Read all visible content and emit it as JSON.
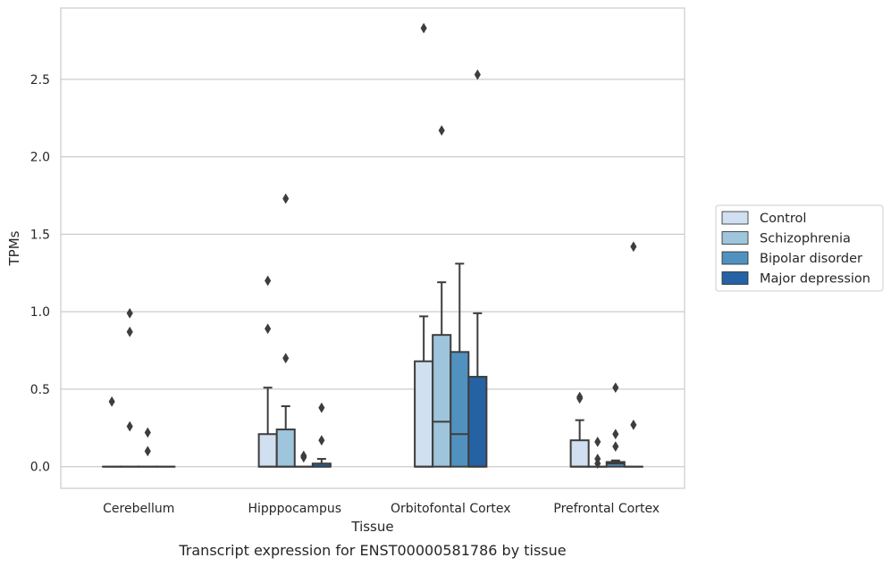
{
  "caption": "Transcript expression for ENST00000581786 by tissue",
  "chart_data": {
    "type": "box",
    "title": "",
    "xlabel": "Tissue",
    "ylabel": "TPMs",
    "categories": [
      "Cerebellum",
      "Hipppocampus",
      "Orbitofontal Cortex",
      "Prefrontal Cortex"
    ],
    "ylim": [
      -0.14,
      2.96
    ],
    "yticks": [
      0.0,
      0.5,
      1.0,
      1.5,
      2.0,
      2.5
    ],
    "ytick_labels": [
      "0.0",
      "0.5",
      "1.0",
      "1.5",
      "2.0",
      "2.5"
    ],
    "grid": "horizontal",
    "legend_position": "right",
    "series": [
      {
        "name": "Control",
        "color": "#d1e0f0",
        "boxes": [
          {
            "q1": 0,
            "median": 0,
            "q3": 0,
            "whisker_low": 0,
            "whisker_high": 0,
            "outliers": [
              0.42
            ]
          },
          {
            "q1": 0,
            "median": 0,
            "q3": 0.21,
            "whisker_low": 0,
            "whisker_high": 0.51,
            "outliers": [
              0.89,
              1.2
            ]
          },
          {
            "q1": 0,
            "median": 0,
            "q3": 0.68,
            "whisker_low": 0,
            "whisker_high": 0.97,
            "outliers": [
              2.83
            ]
          },
          {
            "q1": 0,
            "median": 0,
            "q3": 0.17,
            "whisker_low": 0,
            "whisker_high": 0.3,
            "outliers": [
              0.44,
              0.45
            ]
          }
        ]
      },
      {
        "name": "Schizophrenia",
        "color": "#9ec5dc",
        "boxes": [
          {
            "q1": 0,
            "median": 0,
            "q3": 0,
            "whisker_low": 0,
            "whisker_high": 0,
            "outliers": [
              0.26,
              0.87,
              0.99
            ]
          },
          {
            "q1": 0,
            "median": 0,
            "q3": 0.24,
            "whisker_low": 0,
            "whisker_high": 0.39,
            "outliers": [
              0.7,
              1.73
            ]
          },
          {
            "q1": 0,
            "median": 0.29,
            "q3": 0.85,
            "whisker_low": 0,
            "whisker_high": 1.19,
            "outliers": [
              2.17
            ]
          },
          {
            "q1": 0,
            "median": 0,
            "q3": 0,
            "whisker_low": 0,
            "whisker_high": 0,
            "outliers": [
              0.02,
              0.05,
              0.16
            ]
          }
        ]
      },
      {
        "name": "Bipolar disorder",
        "color": "#5191c0",
        "boxes": [
          {
            "q1": 0,
            "median": 0,
            "q3": 0,
            "whisker_low": 0,
            "whisker_high": 0,
            "outliers": [
              0.1,
              0.22
            ]
          },
          {
            "q1": 0,
            "median": 0,
            "q3": 0,
            "whisker_low": 0,
            "whisker_high": 0,
            "outliers": [
              0.06,
              0.07
            ]
          },
          {
            "q1": 0,
            "median": 0.21,
            "q3": 0.74,
            "whisker_low": 0,
            "whisker_high": 1.31,
            "outliers": []
          },
          {
            "q1": 0,
            "median": 0.02,
            "q3": 0.03,
            "whisker_low": 0,
            "whisker_high": 0.04,
            "outliers": [
              0.13,
              0.21,
              0.51
            ]
          }
        ]
      },
      {
        "name": "Major depression",
        "color": "#2562a4",
        "boxes": [
          {
            "q1": 0,
            "median": 0,
            "q3": 0,
            "whisker_low": 0,
            "whisker_high": 0,
            "outliers": []
          },
          {
            "q1": 0,
            "median": 0,
            "q3": 0.02,
            "whisker_low": 0,
            "whisker_high": 0.05,
            "outliers": [
              0.17,
              0.38
            ]
          },
          {
            "q1": 0,
            "median": 0,
            "q3": 0.58,
            "whisker_low": 0,
            "whisker_high": 0.99,
            "outliers": [
              2.53
            ]
          },
          {
            "q1": 0,
            "median": 0,
            "q3": 0,
            "whisker_low": 0,
            "whisker_high": 0,
            "outliers": [
              0.27,
              1.42
            ]
          }
        ]
      }
    ]
  }
}
